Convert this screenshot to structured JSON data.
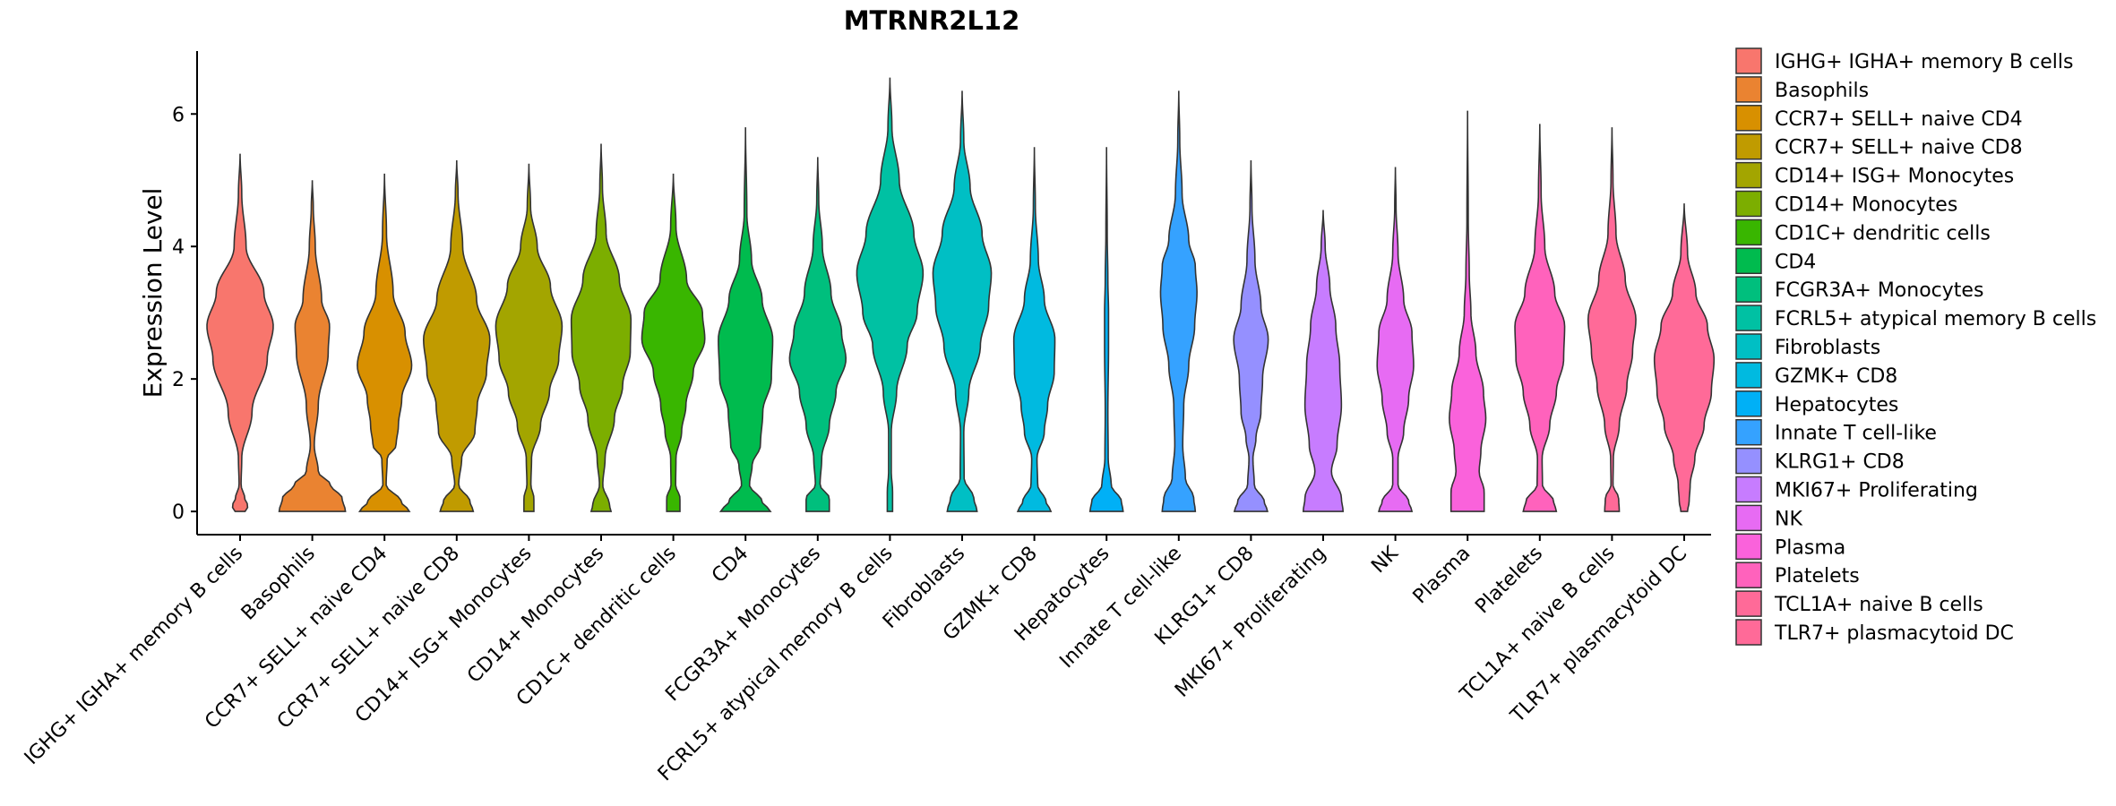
{
  "chart_data": {
    "type": "violin",
    "title": "MTRNR2L12",
    "xlabel": "",
    "ylabel": "Expression Level",
    "ylim": [
      -0.35,
      6.95
    ],
    "yticks": [
      0,
      2,
      4,
      6
    ],
    "legend_position": "right",
    "categories": [
      "IGHG+ IGHA+ memory B cells",
      "Basophils",
      "CCR7+ SELL+ naive CD4",
      "CCR7+ SELL+ naive CD8",
      "CD14+ ISG+ Monocytes",
      "CD14+ Monocytes",
      "CD1C+ dendritic cells",
      "CD4",
      "FCGR3A+ Monocytes",
      "FCRL5+ atypical memory B cells",
      "Fibroblasts",
      "GZMK+ CD8",
      "Hepatocytes",
      "Innate T cell-like",
      "KLRG1+ CD8",
      "MKI67+ Proliferating",
      "NK",
      "Plasma",
      "Platelets",
      "TCL1A+ naive B cells",
      "TLR7+ plasmacytoid DC"
    ],
    "legend_labels": [
      " IGHG+ IGHA+ memory B cells",
      "Basophils",
      "CCR7+ SELL+ naive CD4",
      "CCR7+ SELL+ naive CD8",
      "CD14+ ISG+ Monocytes",
      "CD14+ Monocytes",
      "CD1C+ dendritic cells",
      "CD4",
      "FCGR3A+ Monocytes",
      "FCRL5+ atypical memory B cells",
      "Fibroblasts",
      "GZMK+ CD8",
      "Hepatocytes",
      "Innate T cell-like",
      "KLRG1+ CD8",
      "MKI67+ Proliferating",
      "NK",
      "Plasma",
      "Platelets",
      "TCL1A+ naive B cells",
      "TLR7+ plasmacytoid DC"
    ],
    "colors": [
      "#F8766D",
      "#EA8331",
      "#D89000",
      "#C09B00",
      "#A3A500",
      "#7CAE00",
      "#39B600",
      "#00BB4E",
      "#00BF7D",
      "#00C1A3",
      "#00BFC4",
      "#00BAE0",
      "#00B0F6",
      "#35A2FF",
      "#9590FF",
      "#C77CFF",
      "#E76BF3",
      "#FA62DB",
      "#FF62BC",
      "#FF6A98",
      "#FF6A98"
    ],
    "series": [
      {
        "name": "IGHG+ IGHA+ memory B cells",
        "max": 5.4,
        "profile": [
          [
            0,
            0.15
          ],
          [
            0.08,
            0.24
          ],
          [
            0.2,
            0.14
          ],
          [
            0.4,
            0.03
          ],
          [
            0.8,
            0.05
          ],
          [
            1.5,
            0.36
          ],
          [
            2.3,
            0.82
          ],
          [
            2.8,
            1.0
          ],
          [
            3.3,
            0.72
          ],
          [
            4.0,
            0.18
          ],
          [
            4.8,
            0.05
          ],
          [
            5.4,
            0.0
          ]
        ]
      },
      {
        "name": "Basophils",
        "max": 5.0,
        "profile": [
          [
            0,
            1.0
          ],
          [
            0.2,
            0.9
          ],
          [
            0.4,
            0.55
          ],
          [
            0.6,
            0.18
          ],
          [
            1.0,
            0.06
          ],
          [
            1.6,
            0.18
          ],
          [
            2.4,
            0.48
          ],
          [
            2.8,
            0.52
          ],
          [
            3.2,
            0.28
          ],
          [
            4.0,
            0.09
          ],
          [
            4.6,
            0.03
          ],
          [
            5.0,
            0.0
          ]
        ]
      },
      {
        "name": "CCR7+ SELL+ naive CD4",
        "max": 5.1,
        "profile": [
          [
            0,
            0.75
          ],
          [
            0.15,
            0.5
          ],
          [
            0.4,
            0.05
          ],
          [
            0.8,
            0.08
          ],
          [
            1.0,
            0.35
          ],
          [
            1.3,
            0.42
          ],
          [
            1.7,
            0.52
          ],
          [
            2.2,
            0.82
          ],
          [
            2.7,
            0.62
          ],
          [
            3.3,
            0.26
          ],
          [
            4.2,
            0.06
          ],
          [
            5.1,
            0.0
          ]
        ]
      },
      {
        "name": "CCR7+ SELL+ naive CD8",
        "max": 5.3,
        "profile": [
          [
            0,
            0.5
          ],
          [
            0.15,
            0.4
          ],
          [
            0.4,
            0.06
          ],
          [
            0.8,
            0.15
          ],
          [
            1.2,
            0.55
          ],
          [
            1.6,
            0.62
          ],
          [
            2.1,
            0.9
          ],
          [
            2.6,
            1.0
          ],
          [
            3.2,
            0.6
          ],
          [
            4.0,
            0.18
          ],
          [
            4.8,
            0.04
          ],
          [
            5.3,
            0.0
          ]
        ]
      },
      {
        "name": "CD14+ ISG+ Monocytes",
        "max": 5.25,
        "profile": [
          [
            0,
            0.15
          ],
          [
            0.2,
            0.15
          ],
          [
            0.4,
            0.06
          ],
          [
            0.8,
            0.08
          ],
          [
            1.3,
            0.35
          ],
          [
            1.8,
            0.62
          ],
          [
            2.3,
            0.9
          ],
          [
            2.8,
            1.0
          ],
          [
            3.4,
            0.65
          ],
          [
            4.0,
            0.25
          ],
          [
            4.6,
            0.05
          ],
          [
            5.25,
            0.0
          ]
        ]
      },
      {
        "name": "CD14+ Monocytes",
        "max": 5.55,
        "profile": [
          [
            0,
            0.3
          ],
          [
            0.1,
            0.25
          ],
          [
            0.4,
            0.05
          ],
          [
            0.8,
            0.12
          ],
          [
            1.4,
            0.4
          ],
          [
            1.9,
            0.65
          ],
          [
            2.4,
            0.88
          ],
          [
            2.9,
            0.9
          ],
          [
            3.5,
            0.55
          ],
          [
            4.2,
            0.15
          ],
          [
            4.9,
            0.04
          ],
          [
            5.55,
            0.0
          ]
        ]
      },
      {
        "name": "CD1C+ dendritic cells",
        "max": 5.1,
        "profile": [
          [
            0,
            0.2
          ],
          [
            0.2,
            0.2
          ],
          [
            0.4,
            0.07
          ],
          [
            0.8,
            0.08
          ],
          [
            1.2,
            0.25
          ],
          [
            1.6,
            0.38
          ],
          [
            2.1,
            0.6
          ],
          [
            2.6,
            0.95
          ],
          [
            3.0,
            0.88
          ],
          [
            3.5,
            0.4
          ],
          [
            4.3,
            0.08
          ],
          [
            5.1,
            0.0
          ]
        ]
      },
      {
        "name": "CD4",
        "max": 5.8,
        "profile": [
          [
            0,
            0.75
          ],
          [
            0.15,
            0.5
          ],
          [
            0.4,
            0.12
          ],
          [
            0.7,
            0.2
          ],
          [
            1.0,
            0.45
          ],
          [
            1.5,
            0.52
          ],
          [
            2.0,
            0.78
          ],
          [
            2.6,
            0.82
          ],
          [
            3.2,
            0.5
          ],
          [
            3.8,
            0.18
          ],
          [
            4.5,
            0.04
          ],
          [
            5.8,
            0.0
          ]
        ]
      },
      {
        "name": "FCGR3A+ Monocytes",
        "max": 5.35,
        "profile": [
          [
            0,
            0.35
          ],
          [
            0.2,
            0.35
          ],
          [
            0.4,
            0.07
          ],
          [
            0.8,
            0.12
          ],
          [
            1.3,
            0.35
          ],
          [
            1.8,
            0.55
          ],
          [
            2.3,
            0.85
          ],
          [
            2.7,
            0.72
          ],
          [
            3.3,
            0.4
          ],
          [
            4.0,
            0.14
          ],
          [
            4.7,
            0.03
          ],
          [
            5.35,
            0.0
          ]
        ]
      },
      {
        "name": "FCRL5+ atypical memory B cells",
        "max": 6.55,
        "profile": [
          [
            0,
            0.08
          ],
          [
            0.3,
            0.08
          ],
          [
            0.6,
            0.04
          ],
          [
            1.2,
            0.04
          ],
          [
            1.8,
            0.2
          ],
          [
            2.5,
            0.52
          ],
          [
            3.0,
            0.82
          ],
          [
            3.6,
            1.0
          ],
          [
            4.2,
            0.72
          ],
          [
            5.0,
            0.28
          ],
          [
            5.8,
            0.06
          ],
          [
            6.55,
            0.0
          ]
        ]
      },
      {
        "name": "Fibroblasts",
        "max": 6.35,
        "profile": [
          [
            0,
            0.45
          ],
          [
            0.2,
            0.35
          ],
          [
            0.5,
            0.06
          ],
          [
            1.2,
            0.05
          ],
          [
            1.8,
            0.2
          ],
          [
            2.5,
            0.55
          ],
          [
            3.1,
            0.8
          ],
          [
            3.6,
            0.88
          ],
          [
            4.2,
            0.6
          ],
          [
            4.9,
            0.24
          ],
          [
            5.6,
            0.05
          ],
          [
            6.35,
            0.0
          ]
        ]
      },
      {
        "name": "GZMK+ CD8",
        "max": 5.5,
        "profile": [
          [
            0,
            0.5
          ],
          [
            0.15,
            0.35
          ],
          [
            0.4,
            0.1
          ],
          [
            0.8,
            0.08
          ],
          [
            1.2,
            0.3
          ],
          [
            1.6,
            0.4
          ],
          [
            2.1,
            0.6
          ],
          [
            2.6,
            0.62
          ],
          [
            3.2,
            0.3
          ],
          [
            3.8,
            0.12
          ],
          [
            4.6,
            0.03
          ],
          [
            5.5,
            0.0
          ]
        ]
      },
      {
        "name": "Hepatocytes",
        "max": 5.5,
        "profile": [
          [
            0,
            0.5
          ],
          [
            0.15,
            0.45
          ],
          [
            0.4,
            0.14
          ],
          [
            0.8,
            0.05
          ],
          [
            1.5,
            0.04
          ],
          [
            2.5,
            0.06
          ],
          [
            3.0,
            0.06
          ],
          [
            3.5,
            0.04
          ],
          [
            4.2,
            0.02
          ],
          [
            5.5,
            0.0
          ]
        ]
      },
      {
        "name": "Innate T cell-like",
        "max": 6.35,
        "profile": [
          [
            0,
            0.5
          ],
          [
            0.2,
            0.45
          ],
          [
            0.5,
            0.2
          ],
          [
            1.0,
            0.12
          ],
          [
            1.6,
            0.15
          ],
          [
            2.2,
            0.3
          ],
          [
            2.8,
            0.48
          ],
          [
            3.3,
            0.55
          ],
          [
            3.7,
            0.5
          ],
          [
            4.1,
            0.3
          ],
          [
            4.8,
            0.1
          ],
          [
            5.6,
            0.03
          ],
          [
            6.35,
            0.0
          ]
        ]
      },
      {
        "name": "KLRG1+ CD8",
        "max": 5.3,
        "profile": [
          [
            0,
            0.5
          ],
          [
            0.15,
            0.4
          ],
          [
            0.4,
            0.1
          ],
          [
            0.8,
            0.06
          ],
          [
            1.1,
            0.15
          ],
          [
            1.5,
            0.3
          ],
          [
            2.0,
            0.35
          ],
          [
            2.6,
            0.52
          ],
          [
            3.1,
            0.3
          ],
          [
            3.8,
            0.12
          ],
          [
            4.6,
            0.03
          ],
          [
            5.3,
            0.0
          ]
        ]
      },
      {
        "name": "MKI67+ Proliferating",
        "max": 4.55,
        "profile": [
          [
            0,
            0.6
          ],
          [
            0.2,
            0.55
          ],
          [
            0.6,
            0.25
          ],
          [
            1.0,
            0.42
          ],
          [
            1.6,
            0.55
          ],
          [
            2.2,
            0.5
          ],
          [
            2.8,
            0.38
          ],
          [
            3.4,
            0.2
          ],
          [
            4.0,
            0.06
          ],
          [
            4.55,
            0.0
          ]
        ]
      },
      {
        "name": "NK",
        "max": 5.2,
        "profile": [
          [
            0,
            0.5
          ],
          [
            0.15,
            0.4
          ],
          [
            0.4,
            0.08
          ],
          [
            0.8,
            0.08
          ],
          [
            1.2,
            0.25
          ],
          [
            1.7,
            0.4
          ],
          [
            2.2,
            0.55
          ],
          [
            2.7,
            0.5
          ],
          [
            3.2,
            0.25
          ],
          [
            3.9,
            0.08
          ],
          [
            4.6,
            0.02
          ],
          [
            5.2,
            0.0
          ]
        ]
      },
      {
        "name": "Plasma",
        "max": 6.05,
        "profile": [
          [
            0,
            0.5
          ],
          [
            0.3,
            0.5
          ],
          [
            0.6,
            0.35
          ],
          [
            0.9,
            0.4
          ],
          [
            1.4,
            0.55
          ],
          [
            1.8,
            0.48
          ],
          [
            2.4,
            0.25
          ],
          [
            3.0,
            0.1
          ],
          [
            3.6,
            0.05
          ],
          [
            4.4,
            0.02
          ],
          [
            6.05,
            0.0
          ]
        ]
      },
      {
        "name": "Platelets",
        "max": 5.85,
        "profile": [
          [
            0,
            0.5
          ],
          [
            0.15,
            0.42
          ],
          [
            0.4,
            0.08
          ],
          [
            0.8,
            0.07
          ],
          [
            1.3,
            0.3
          ],
          [
            1.8,
            0.5
          ],
          [
            2.3,
            0.72
          ],
          [
            2.8,
            0.75
          ],
          [
            3.3,
            0.45
          ],
          [
            4.0,
            0.15
          ],
          [
            4.8,
            0.04
          ],
          [
            5.85,
            0.0
          ]
        ]
      },
      {
        "name": "TCL1A+ naive B cells",
        "max": 5.8,
        "profile": [
          [
            0,
            0.22
          ],
          [
            0.2,
            0.2
          ],
          [
            0.4,
            0.03
          ],
          [
            0.8,
            0.04
          ],
          [
            1.3,
            0.22
          ],
          [
            1.9,
            0.45
          ],
          [
            2.4,
            0.62
          ],
          [
            2.9,
            0.72
          ],
          [
            3.5,
            0.4
          ],
          [
            4.2,
            0.12
          ],
          [
            5.0,
            0.03
          ],
          [
            5.8,
            0.0
          ]
        ]
      },
      {
        "name": "TLR7+ plasmacytoid DC",
        "max": 4.65,
        "profile": [
          [
            0,
            0.1
          ],
          [
            0.15,
            0.15
          ],
          [
            0.4,
            0.18
          ],
          [
            0.8,
            0.32
          ],
          [
            1.3,
            0.6
          ],
          [
            1.8,
            0.82
          ],
          [
            2.3,
            0.9
          ],
          [
            2.8,
            0.7
          ],
          [
            3.3,
            0.35
          ],
          [
            3.9,
            0.1
          ],
          [
            4.65,
            0.0
          ]
        ]
      }
    ]
  }
}
